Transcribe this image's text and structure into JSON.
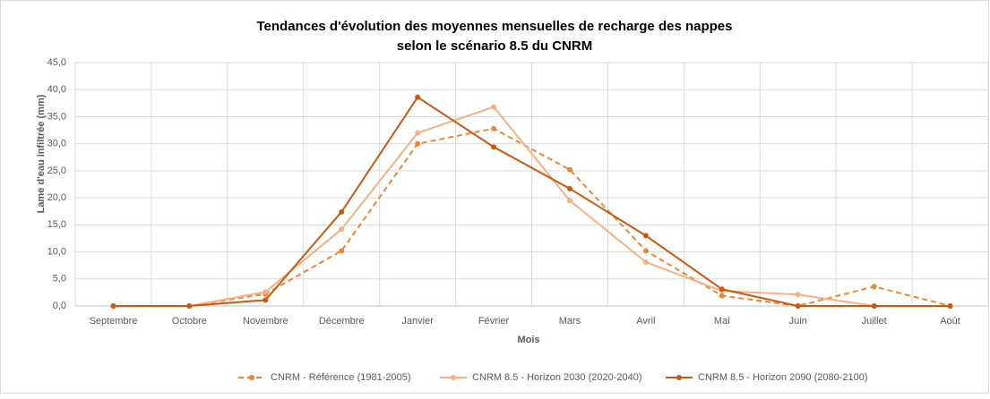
{
  "chart_data": {
    "type": "line",
    "title": [
      "Tendances d'évolution des moyennes mensuelles de recharge des nappes",
      "selon le scénario 8.5 du CNRM"
    ],
    "x_label": "Mois",
    "y_label": "Lame d'eau infiltrée (mm)",
    "categories": [
      "Septembre",
      "Octobre",
      "Novembre",
      "Décembre",
      "Janvier",
      "Février",
      "Mars",
      "Avril",
      "Mai",
      "Juin",
      "Juillet",
      "Août"
    ],
    "series": [
      {
        "name": "CNRM - Référence (1981-2005)",
        "color": "#e8873a",
        "dashed": true,
        "values": [
          0,
          0,
          2.2,
          10.2,
          30.0,
          32.8,
          25.2,
          10.2,
          1.9,
          0,
          3.6,
          0
        ]
      },
      {
        "name": "CNRM 8.5 - Horizon 2030 (2020-2040)",
        "color": "#f4b183",
        "dashed": false,
        "values": [
          0,
          0,
          2.6,
          14.2,
          32.0,
          36.8,
          19.5,
          8.1,
          2.8,
          2.1,
          0,
          0
        ]
      },
      {
        "name": "CNRM 8.5 - Horizon 2090 (2080-2100)",
        "color": "#c55a11",
        "dashed": false,
        "values": [
          0,
          0,
          1.1,
          17.4,
          38.6,
          29.4,
          21.7,
          13.0,
          3.1,
          0,
          0,
          0
        ]
      }
    ],
    "ylim": [
      0,
      45
    ],
    "yticks": [
      {
        "value": 0,
        "label": "0,0"
      },
      {
        "value": 5,
        "label": "5,0"
      },
      {
        "value": 10,
        "label": "10,0"
      },
      {
        "value": 15,
        "label": "15,0"
      },
      {
        "value": 20,
        "label": "20,0"
      },
      {
        "value": 25,
        "label": "25,0"
      },
      {
        "value": 30,
        "label": "30,0"
      },
      {
        "value": 35,
        "label": "35,0"
      },
      {
        "value": 40,
        "label": "40,0"
      },
      {
        "value": 45,
        "label": "45,0"
      }
    ],
    "grid": true,
    "legend": "bottom"
  }
}
